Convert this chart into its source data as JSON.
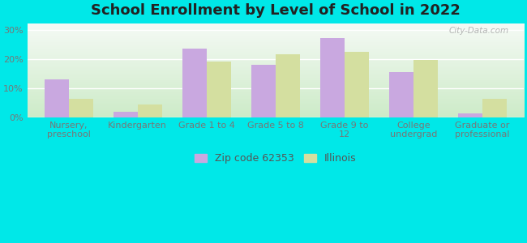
{
  "title": "School Enrollment by Level of School in 2022",
  "categories": [
    "Nursery,\npreschool",
    "Kindergarten",
    "Grade 1 to 4",
    "Grade 5 to 8",
    "Grade 9 to\n12",
    "College\nundergrad",
    "Graduate or\nprofessional"
  ],
  "zip_values": [
    13,
    2,
    23.5,
    18,
    27,
    15.5,
    1.5
  ],
  "illinois_values": [
    6.5,
    4.5,
    19,
    21.5,
    22.5,
    19.5,
    6.5
  ],
  "zip_color": "#c9a8e0",
  "illinois_color": "#d4dfa0",
  "background_color": "#00e8e8",
  "plot_bg_top": "#f5faf5",
  "plot_bg_bottom": "#d0eecc",
  "ylabel_ticks": [
    "0%",
    "10%",
    "20%",
    "30%"
  ],
  "ytick_values": [
    0,
    10,
    20,
    30
  ],
  "ylim": [
    0,
    32
  ],
  "zip_label": "Zip code 62353",
  "illinois_label": "Illinois",
  "watermark": "City-Data.com",
  "title_fontsize": 13,
  "tick_fontsize": 8,
  "legend_fontsize": 9,
  "bar_width": 0.35
}
